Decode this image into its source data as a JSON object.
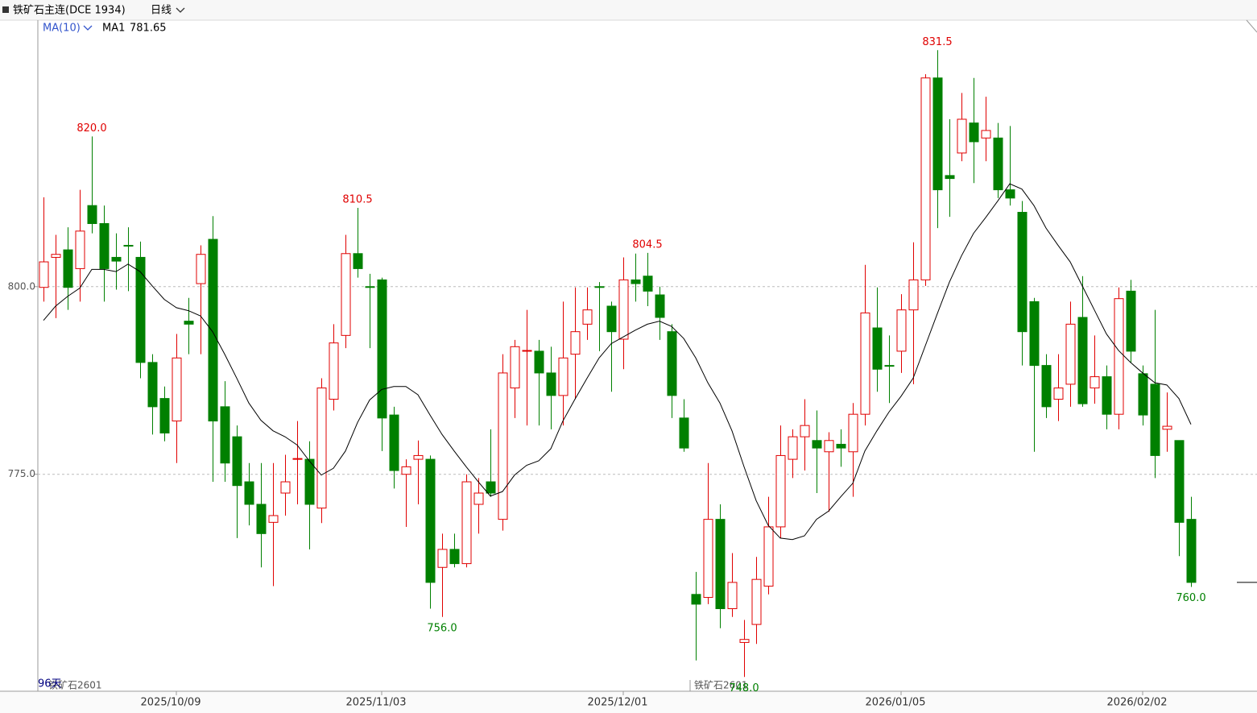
{
  "chart_data": {
    "type": "candlestick",
    "title": "铁矿石主连(DCE 1934)",
    "period": "日线",
    "indicator": "MA(10)",
    "contract": "铁矿石2601",
    "bar_count": "96天",
    "up_color": "#e00000",
    "down_color": "#008000",
    "categories": [
      null,
      null,
      null,
      null,
      null,
      null,
      null,
      null,
      null,
      null,
      null,
      "2025/10/09",
      null,
      null,
      null,
      null,
      null,
      null,
      null,
      null,
      null,
      null,
      null,
      null,
      null,
      null,
      null,
      null,
      "2025/11/03",
      null,
      null,
      null,
      null,
      null,
      null,
      null,
      null,
      null,
      null,
      null,
      null,
      null,
      null,
      null,
      null,
      null,
      null,
      null,
      "2025/12/01",
      null,
      null,
      null,
      null,
      null,
      null,
      null,
      null,
      null,
      null,
      null,
      null,
      null,
      null,
      null,
      null,
      null,
      null,
      null,
      null,
      null,
      null,
      "2026/01/05",
      null,
      null,
      null,
      null,
      null,
      null,
      null,
      null,
      null,
      null,
      null,
      null,
      null,
      null,
      null,
      null,
      null,
      null,
      null,
      "2026/02/02",
      null,
      null,
      null,
      null
    ],
    "open": [
      799.9,
      803.9,
      804.9,
      802.4,
      810.8,
      808.4,
      803.9,
      805.5,
      803.9,
      789.9,
      785.1,
      782.1,
      795.4,
      800.4,
      806.3,
      784.0,
      780.0,
      774.0,
      771.0,
      768.6,
      772.5,
      777.0,
      777.0,
      770.5,
      785.0,
      793.5,
      804.4,
      800.0,
      800.9,
      782.9,
      775.0,
      777.0,
      777.0,
      762.6,
      765.0,
      763.1,
      771.0,
      774.0,
      769.0,
      786.5,
      791.4,
      791.4,
      788.5,
      785.5,
      791.0,
      795.0,
      800.0,
      797.4,
      793.0,
      800.9,
      801.4,
      798.9,
      794.0,
      782.5,
      759.0,
      758.6,
      769.0,
      757.1,
      752.6,
      755.0,
      760.1,
      768.0,
      777.0,
      780.0,
      779.5,
      778.0,
      779.0,
      778.0,
      783.0,
      794.5,
      789.5,
      791.4,
      796.9,
      800.9,
      827.8,
      814.8,
      817.8,
      821.8,
      819.8,
      819.8,
      812.9,
      809.9,
      798.0,
      789.5,
      785.0,
      787.0,
      795.9,
      786.5,
      788.0,
      783.0,
      799.4,
      788.4,
      787.0,
      781.0,
      779.5,
      769.0
    ],
    "high": [
      811.9,
      806.9,
      807.9,
      812.9,
      820.0,
      810.8,
      807.1,
      807.9,
      806.0,
      791.0,
      786.7,
      793.7,
      798.5,
      805.5,
      809.4,
      787.4,
      781.5,
      776.5,
      776.5,
      776.5,
      777.6,
      782.1,
      779.4,
      787.8,
      795.0,
      806.9,
      810.5,
      801.7,
      801.2,
      784.0,
      777.0,
      779.5,
      777.5,
      767.1,
      767.1,
      775.0,
      774.5,
      781.0,
      791.0,
      792.9,
      796.9,
      792.9,
      792.0,
      798.0,
      799.9,
      799.9,
      800.6,
      798.0,
      803.9,
      804.4,
      804.5,
      800.0,
      795.0,
      785.0,
      762.0,
      776.5,
      771.0,
      764.5,
      755.6,
      764.0,
      772.0,
      781.5,
      781.0,
      785.0,
      783.5,
      780.6,
      781.0,
      784.5,
      802.9,
      799.9,
      793.5,
      799.0,
      805.9,
      828.3,
      831.5,
      822.3,
      825.8,
      827.8,
      825.3,
      821.8,
      821.4,
      811.4,
      798.5,
      791.0,
      791.0,
      798.0,
      801.4,
      793.5,
      789.5,
      799.9,
      800.9,
      789.5,
      796.9,
      785.9,
      779.5,
      772.0
    ],
    "low": [
      798.0,
      795.8,
      796.9,
      798.0,
      807.1,
      798.0,
      799.6,
      799.4,
      787.8,
      780.3,
      779.4,
      776.5,
      791.0,
      791.0,
      774.0,
      774.0,
      766.5,
      768.2,
      762.6,
      760.1,
      769.5,
      771.0,
      765.0,
      768.5,
      783.5,
      791.8,
      801.2,
      791.8,
      778.1,
      773.1,
      768.0,
      771.0,
      757.1,
      756.0,
      762.6,
      762.6,
      767.1,
      772.0,
      767.5,
      782.5,
      781.5,
      781.5,
      781.0,
      781.5,
      785.0,
      792.9,
      791.4,
      786.0,
      789.0,
      798.0,
      797.4,
      792.9,
      782.5,
      778.0,
      750.2,
      757.7,
      754.5,
      756.0,
      748.0,
      752.4,
      759.0,
      766.5,
      774.5,
      775.5,
      772.5,
      770.0,
      776.0,
      772.0,
      781.5,
      786.0,
      784.5,
      788.5,
      787.0,
      800.1,
      807.8,
      809.3,
      816.7,
      813.8,
      816.7,
      811.8,
      810.8,
      789.5,
      778.0,
      782.5,
      782.1,
      784.0,
      784.0,
      784.4,
      781.0,
      781.0,
      789.9,
      781.5,
      774.5,
      778.0,
      764.1,
      760.0
    ],
    "close": [
      803.3,
      804.3,
      799.9,
      807.4,
      808.4,
      802.4,
      803.4,
      805.4,
      789.9,
      784.0,
      780.5,
      790.5,
      795.0,
      804.3,
      782.1,
      776.5,
      773.5,
      771.0,
      767.1,
      769.5,
      774.0,
      777.1,
      771.0,
      786.5,
      792.5,
      804.4,
      802.4,
      799.9,
      782.5,
      775.5,
      776.0,
      777.5,
      760.6,
      765.0,
      763.1,
      774.0,
      772.5,
      772.5,
      788.5,
      792.0,
      791.5,
      788.5,
      785.5,
      790.5,
      794.0,
      796.9,
      799.9,
      794.0,
      800.9,
      800.4,
      799.4,
      795.9,
      785.5,
      778.5,
      757.7,
      769.0,
      757.1,
      760.6,
      753.0,
      761.0,
      768.0,
      777.5,
      780.0,
      781.5,
      778.5,
      779.5,
      778.5,
      783.0,
      796.5,
      789.0,
      789.4,
      796.9,
      800.9,
      827.8,
      812.9,
      814.4,
      822.3,
      819.3,
      820.8,
      812.9,
      811.8,
      794.0,
      789.5,
      784.0,
      786.5,
      795.0,
      784.4,
      788.0,
      783.0,
      798.4,
      791.4,
      782.9,
      777.5,
      781.4,
      768.6,
      760.6
    ],
    "ma": {
      "name": "MA1",
      "color": "#000000",
      "values": [
        795.5,
        797.4,
        798.7,
        799.8,
        802.3,
        802.3,
        802.0,
        803.0,
        802.0,
        800.1,
        798.3,
        797.2,
        796.8,
        796.1,
        794.0,
        791.0,
        787.8,
        784.5,
        782.2,
        780.8,
        780.0,
        778.9,
        776.8,
        774.9,
        775.8,
        778.1,
        781.9,
        784.9,
        786.3,
        786.7,
        786.7,
        785.6,
        782.9,
        780.3,
        778.1,
        776.0,
        774.0,
        772.1,
        772.7,
        774.9,
        776.2,
        776.8,
        778.4,
        782.1,
        785.0,
        787.8,
        790.5,
        792.4,
        793.3,
        794.2,
        795.0,
        795.4,
        794.7,
        793.1,
        790.5,
        787.2,
        784.5,
        780.8,
        776.0,
        771.5,
        768.2,
        766.5,
        766.3,
        766.8,
        769.0,
        770.1,
        772.0,
        773.8,
        778.1,
        780.8,
        783.3,
        785.4,
        787.8,
        792.1,
        796.4,
        800.6,
        804.1,
        807.1,
        809.2,
        811.4,
        813.7,
        813.0,
        810.8,
        807.8,
        805.5,
        803.3,
        800.1,
        796.9,
        793.7,
        791.5,
        789.9,
        788.5,
        787.2,
        786.9,
        785.1,
        781.65
      ]
    },
    "annotations": [
      {
        "series": "high",
        "candle": 4,
        "label": "820.0",
        "color": "#e00000"
      },
      {
        "series": "high",
        "candle": 26,
        "label": "810.5",
        "color": "#e00000"
      },
      {
        "series": "low",
        "candle": 33,
        "label": "756.0",
        "color": "#008000"
      },
      {
        "series": "high",
        "candle": 50,
        "label": "804.5",
        "color": "#e00000"
      },
      {
        "series": "low",
        "candle": 58,
        "label": "748.0",
        "color": "#008000"
      },
      {
        "series": "high",
        "candle": 74,
        "label": "831.5",
        "color": "#e00000"
      },
      {
        "series": "low",
        "candle": 95,
        "label": "760.0",
        "color": "#008000"
      }
    ],
    "ylim": [
      746.1,
      835.5
    ],
    "yticks": [
      {
        "value": 775,
        "label": "775.0"
      },
      {
        "value": 800,
        "label": "800.0"
      }
    ],
    "grid": true
  }
}
